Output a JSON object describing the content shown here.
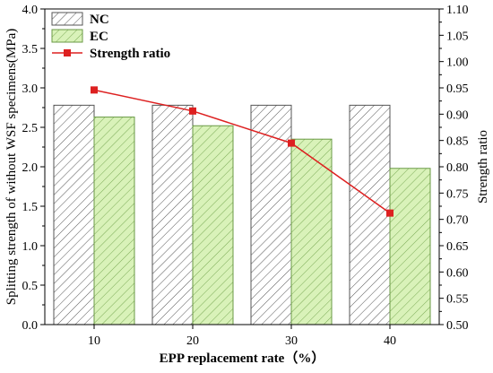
{
  "chart_data": {
    "type": "bar",
    "categories": [
      "10",
      "20",
      "30",
      "40"
    ],
    "xlabel": "EPP replacement rate（%）",
    "ylabel": "Splitting  strength of without WSF specimens(MPa)",
    "y2label": "Strength ratio",
    "ylim": [
      0,
      4.0
    ],
    "y2lim": [
      0.5,
      1.1
    ],
    "yticks": [
      "0.0",
      "0.5",
      "1.0",
      "1.5",
      "2.0",
      "2.5",
      "3.0",
      "3.5",
      "4.0"
    ],
    "y2ticks": [
      "0.50",
      "0.55",
      "0.60",
      "0.65",
      "0.70",
      "0.75",
      "0.80",
      "0.85",
      "0.90",
      "0.95",
      "1.00",
      "1.05",
      "1.10"
    ],
    "legend_position": "top-left",
    "series": [
      {
        "name": "NC",
        "kind": "bar",
        "axis": "left",
        "values": [
          2.78,
          2.78,
          2.78,
          2.78
        ],
        "color": "#ffffff",
        "pattern": "diagonal-hatch"
      },
      {
        "name": "EC",
        "kind": "bar",
        "axis": "left",
        "values": [
          2.63,
          2.52,
          2.35,
          1.98
        ],
        "color": "#d9f2b9",
        "pattern": "diagonal-hatch"
      },
      {
        "name": "Strength ratio",
        "kind": "line",
        "axis": "right",
        "values": [
          0.946,
          0.906,
          0.845,
          0.712
        ],
        "color": "#dd2020",
        "marker": "square"
      }
    ]
  }
}
